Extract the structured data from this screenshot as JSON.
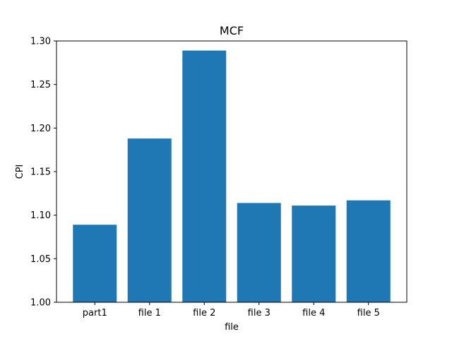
{
  "chart_data": {
    "type": "bar",
    "title": "MCF",
    "xlabel": "file",
    "ylabel": "CPI",
    "categories": [
      "part1",
      "file 1",
      "file 2",
      "file 3",
      "file 4",
      "file 5"
    ],
    "values": [
      1.089,
      1.188,
      1.289,
      1.114,
      1.111,
      1.117
    ],
    "ylim": [
      1.0,
      1.3
    ],
    "yticks": [
      "1.00",
      "1.05",
      "1.10",
      "1.15",
      "1.20",
      "1.25",
      "1.30"
    ],
    "bar_color": "#1f77b4",
    "grid": false,
    "legend": "none"
  }
}
